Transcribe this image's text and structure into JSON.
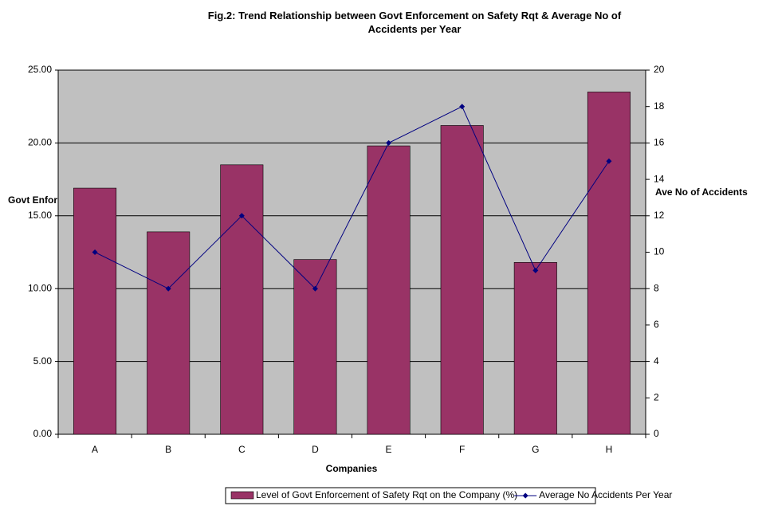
{
  "chart_data": {
    "type": "bar",
    "title": "Fig.2: Trend Relationship between Govt Enforcement on Safety Rqt & Average No of Accidents per Year",
    "x_label": "Companies",
    "y_label": "Govt Enforcement",
    "y2_label": "Ave No of Accidents",
    "categories": [
      "A",
      "B",
      "C",
      "D",
      "E",
      "F",
      "G",
      "H"
    ],
    "series": [
      {
        "name": "Level of Govt Enforcement of Safety Rqt on the Company (%)",
        "color": "#993366",
        "values": [
          16.9,
          13.9,
          18.5,
          12.0,
          19.8,
          21.2,
          11.8,
          23.5
        ]
      },
      {
        "name": "Average No Accidents Per Year",
        "type": "line",
        "axis": "y2",
        "color": "#000080",
        "values": [
          10,
          8,
          12,
          8,
          16,
          18,
          9,
          15
        ]
      }
    ],
    "ylim": [
      0,
      25
    ],
    "yticks": [
      {
        "value": 0,
        "label": "0.00"
      },
      {
        "value": 5,
        "label": "5.00"
      },
      {
        "value": 10,
        "label": "10.00"
      },
      {
        "value": 15,
        "label": "15.00"
      },
      {
        "value": 20,
        "label": "20.00"
      },
      {
        "value": 25,
        "label": "25.00"
      }
    ],
    "y2lim": [
      0,
      20
    ],
    "y2ticks": [
      0,
      2,
      4,
      6,
      8,
      10,
      12,
      14,
      16,
      18,
      20
    ],
    "grid": true,
    "plot_background": "#c0c0c0",
    "legend": "bottom"
  }
}
